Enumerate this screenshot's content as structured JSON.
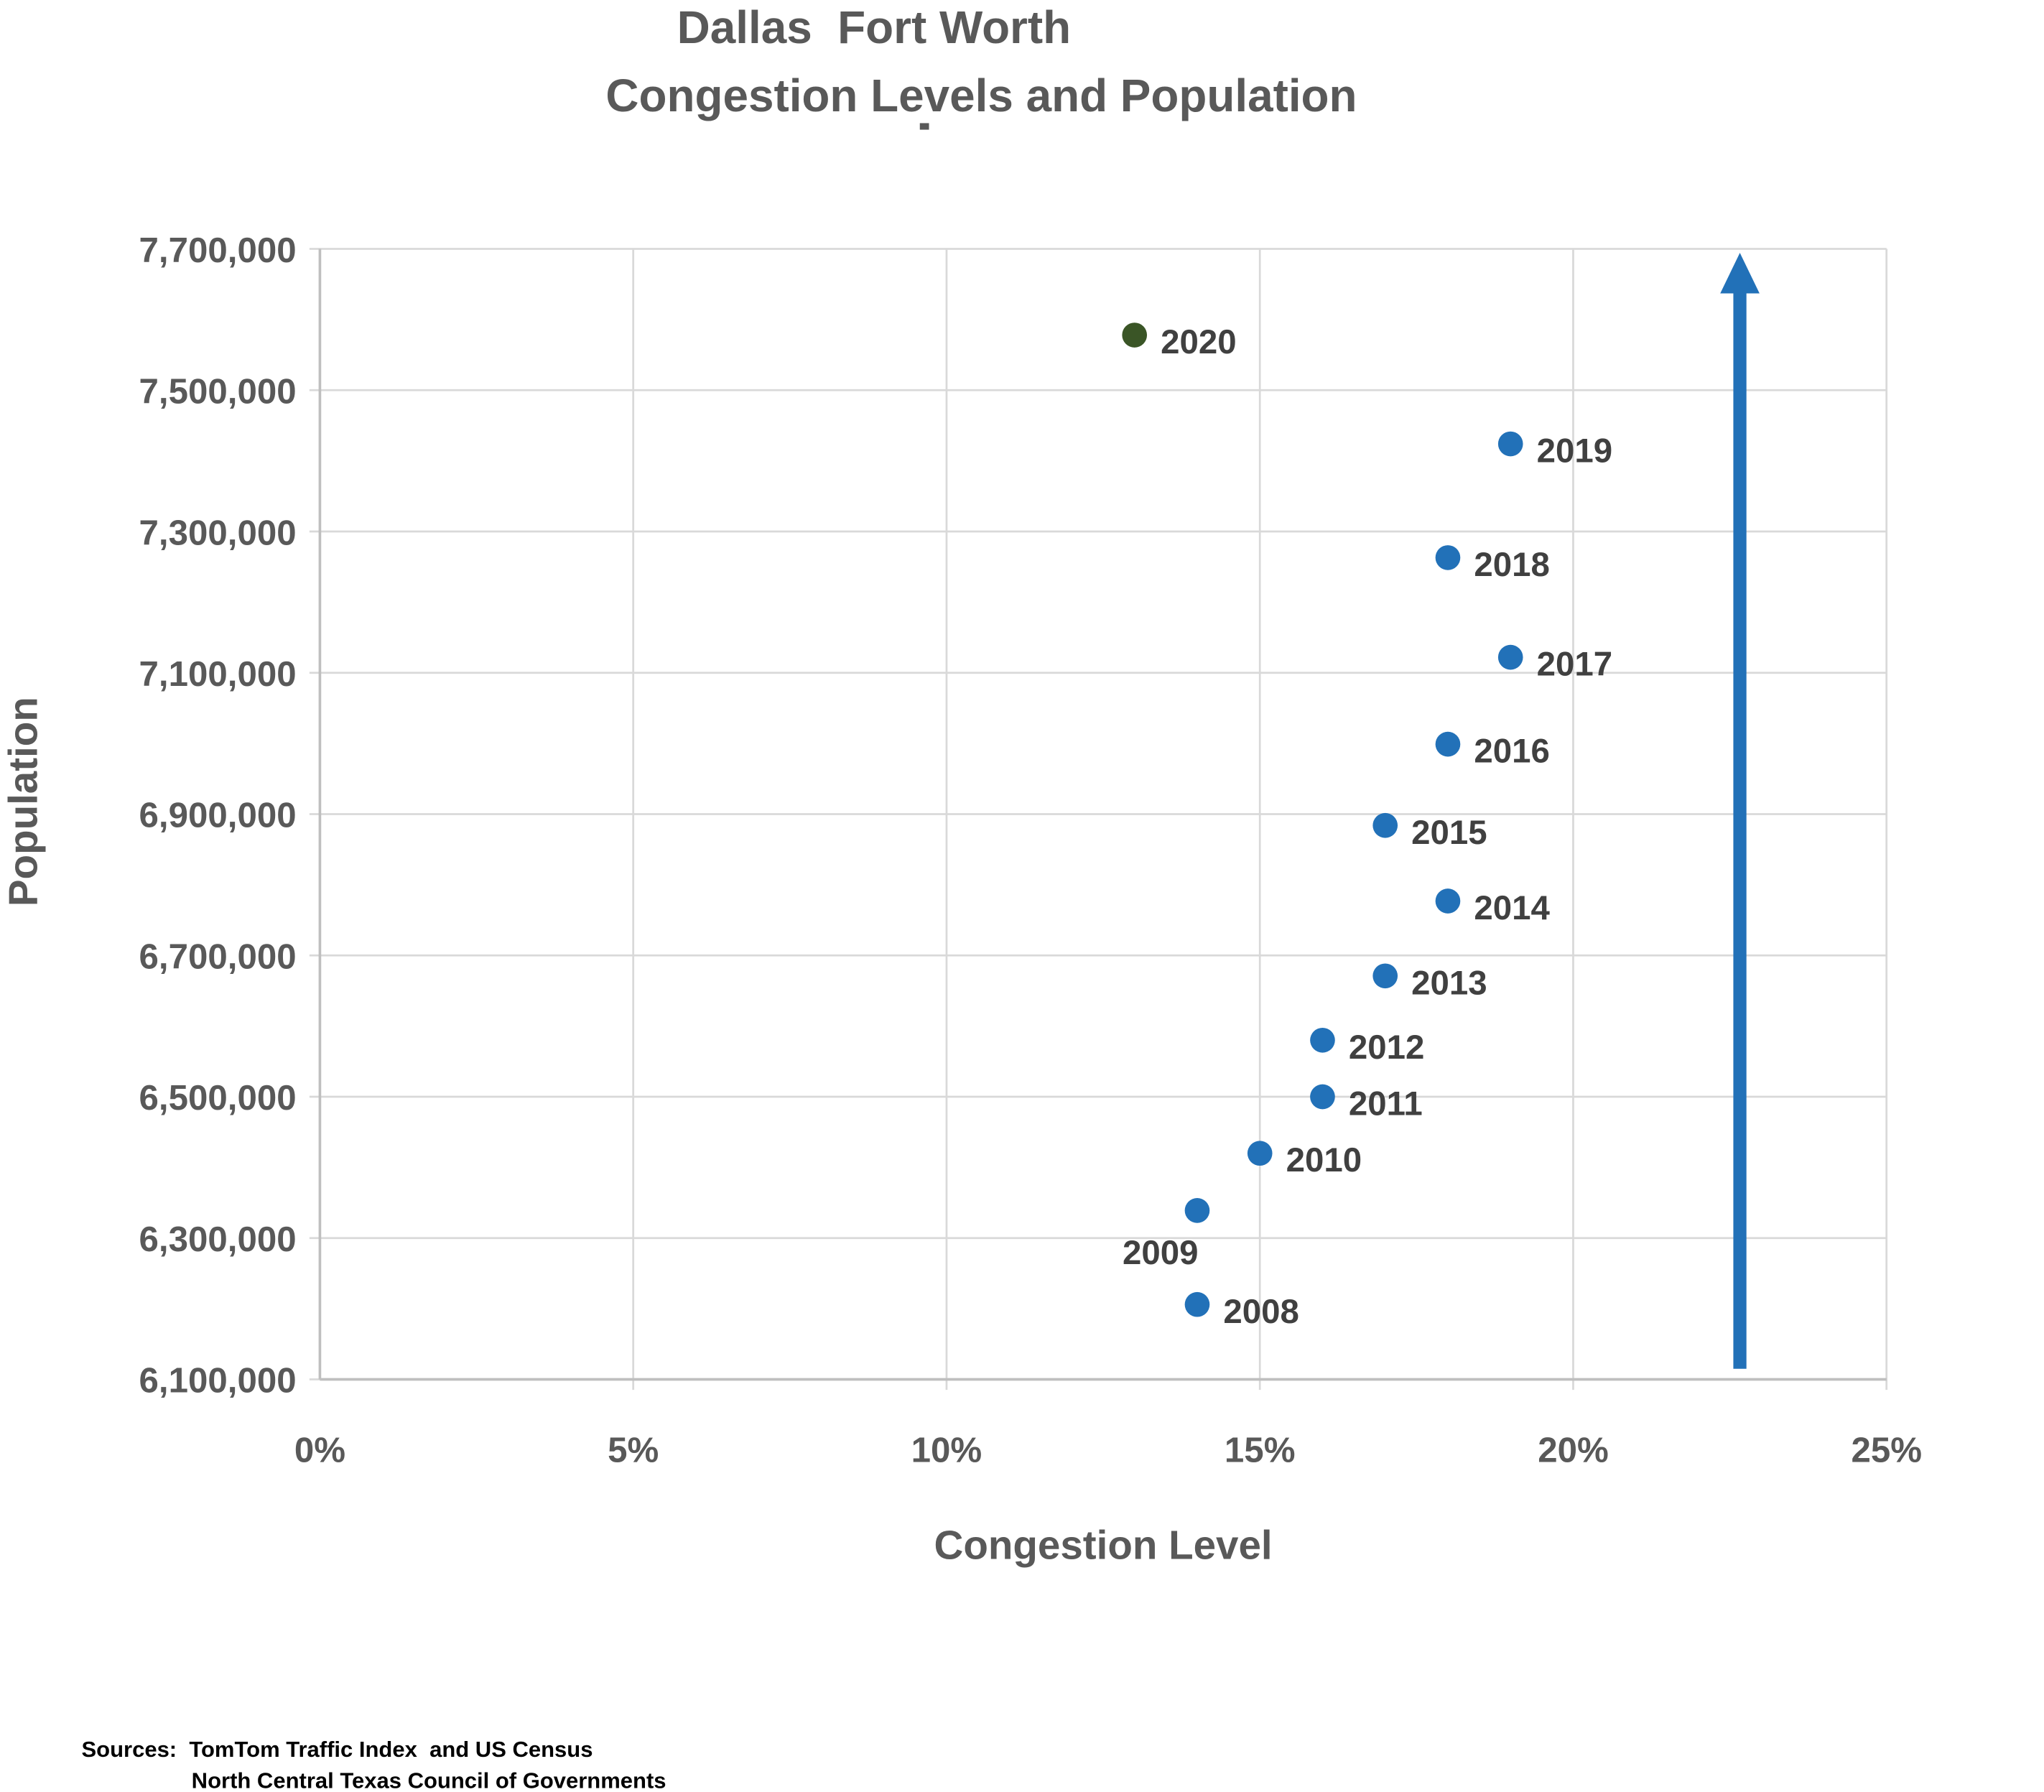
{
  "chart_data": {
    "type": "scatter",
    "title": [
      "Dallas  Fort Worth",
      "Congestion Levels and Population"
    ],
    "xlabel": "Congestion Level",
    "ylabel": "Population",
    "xlim": [
      0,
      25
    ],
    "ylim": [
      6100000,
      7700000
    ],
    "x_ticks": [
      "0%",
      "5%",
      "10%",
      "15%",
      "20%",
      "25%"
    ],
    "y_ticks": [
      "6,100,000",
      "6,300,000",
      "6,500,000",
      "6,700,000",
      "6,900,000",
      "7,100,000",
      "7,300,000",
      "7,500,000",
      "7,700,000"
    ],
    "grid": true,
    "points": [
      {
        "label": "2008",
        "x": 14,
        "y": 6206000,
        "color": "#2271b8"
      },
      {
        "label": "2009",
        "x": 14,
        "y": 6339000,
        "color": "#2271b8"
      },
      {
        "label": "2010",
        "x": 15,
        "y": 6420000,
        "color": "#2271b8"
      },
      {
        "label": "2011",
        "x": 16,
        "y": 6500000,
        "color": "#2271b8"
      },
      {
        "label": "2012",
        "x": 16,
        "y": 6580000,
        "color": "#2271b8"
      },
      {
        "label": "2013",
        "x": 17,
        "y": 6671000,
        "color": "#2271b8"
      },
      {
        "label": "2014",
        "x": 18,
        "y": 6777000,
        "color": "#2271b8"
      },
      {
        "label": "2015",
        "x": 17,
        "y": 6884000,
        "color": "#2271b8"
      },
      {
        "label": "2016",
        "x": 18,
        "y": 6999000,
        "color": "#2271b8"
      },
      {
        "label": "2017",
        "x": 19,
        "y": 7122000,
        "color": "#2271b8"
      },
      {
        "label": "2018",
        "x": 18,
        "y": 7263000,
        "color": "#2271b8"
      },
      {
        "label": "2019",
        "x": 19,
        "y": 7424000,
        "color": "#2271b8"
      },
      {
        "label": "2020",
        "x": 13,
        "y": 7578000,
        "color": "#3a5526"
      }
    ],
    "arrow": {
      "x": 22.66,
      "y_from": 6115000,
      "y_to": 7700000,
      "color": "#2271b8"
    }
  },
  "sources": [
    "Sources:  TomTom Traffic Index  and US Census",
    "North Central Texas Council of Governments"
  ]
}
